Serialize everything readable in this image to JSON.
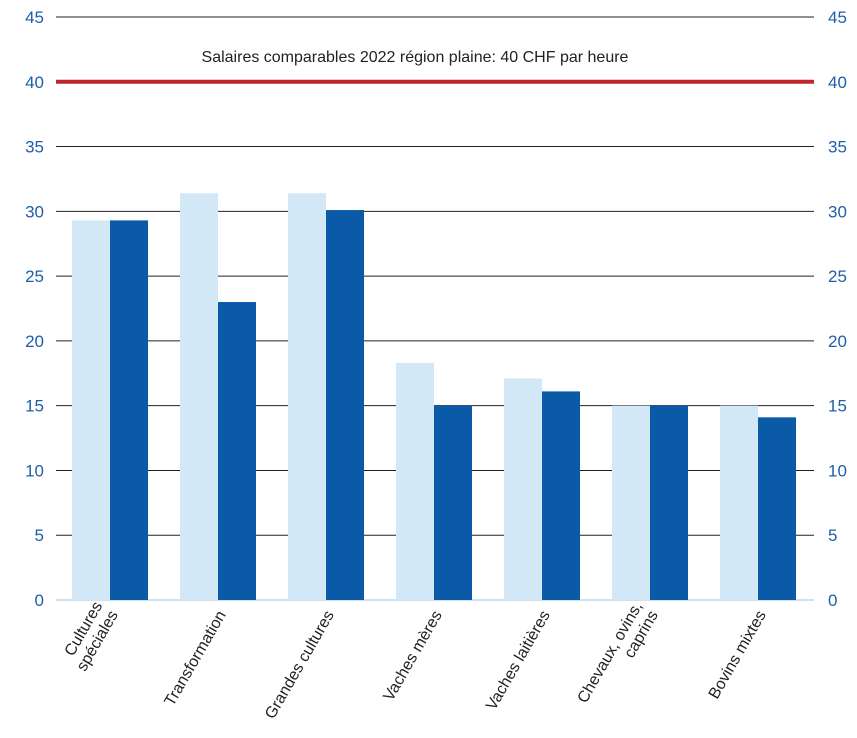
{
  "chart_data": {
    "type": "bar",
    "categories": [
      [
        "Cultures",
        "spéciales"
      ],
      [
        "Transformation"
      ],
      [
        "Grandes cultures"
      ],
      [
        "Vaches mères"
      ],
      [
        "Vaches laitières"
      ],
      [
        "Chevaux, ovins,",
        "caprins"
      ],
      [
        "Bovins mixtes"
      ]
    ],
    "series": [
      {
        "values": [
          29.3,
          31.4,
          31.4,
          18.3,
          17.1,
          15.0,
          15.0
        ],
        "color": "#d3e8f7"
      },
      {
        "values": [
          29.3,
          23.0,
          30.1,
          15.0,
          16.1,
          15.0,
          14.1
        ],
        "color": "#0b5aa8"
      }
    ],
    "ylim": [
      0,
      45
    ],
    "yticks": [
      "0",
      "5",
      "10",
      "15",
      "20",
      "25",
      "30",
      "35",
      "40",
      "45"
    ],
    "y_axis_both_sides": true,
    "grid": true,
    "reference_line": {
      "value": 40,
      "label": "Salaires comparables 2022 région plaine: 40 CHF par heure",
      "color": "#c0262d"
    },
    "colors": {
      "tick": "#1f5fa8",
      "grid": "#222222",
      "text": "#222222"
    }
  }
}
